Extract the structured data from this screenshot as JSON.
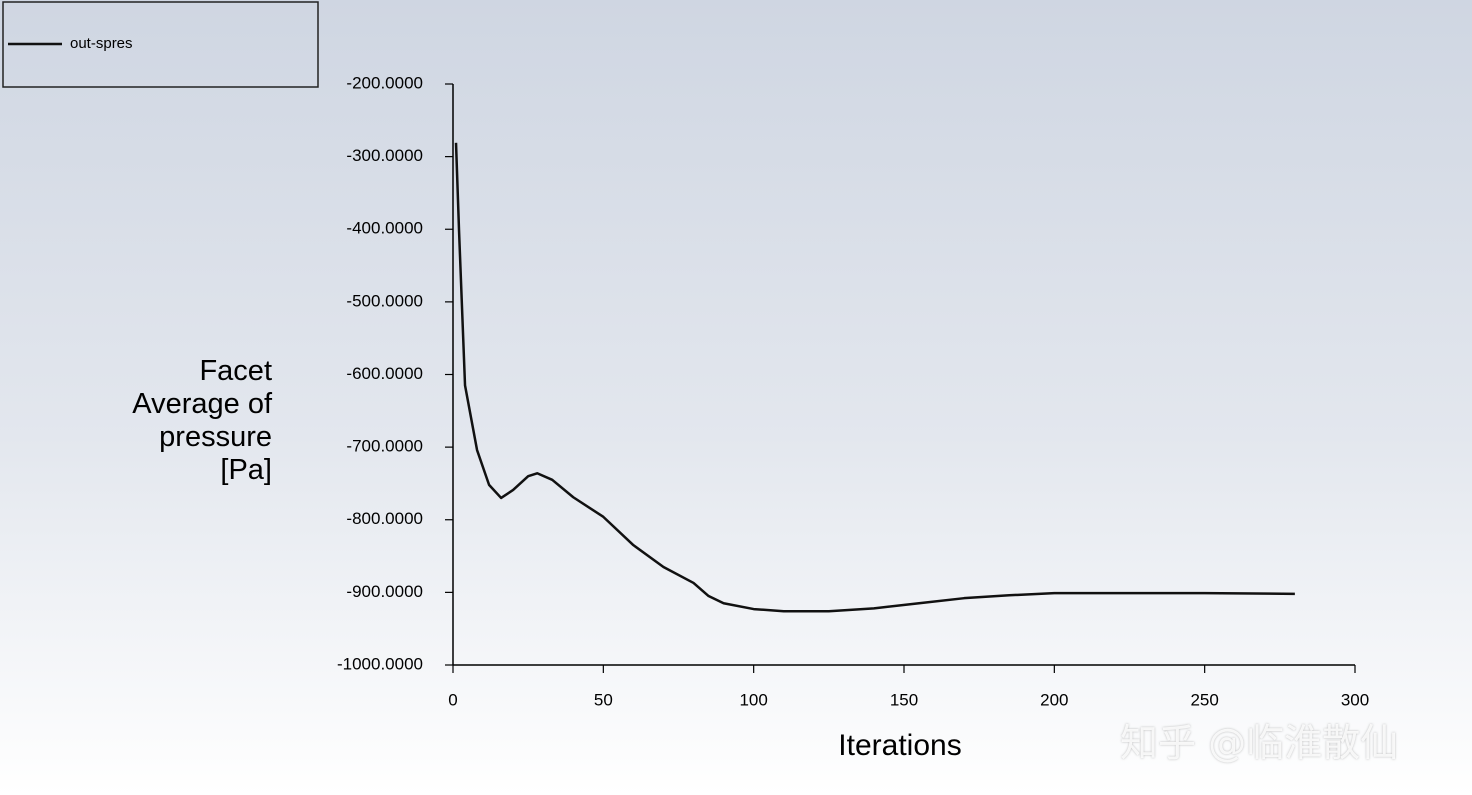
{
  "chart_data": {
    "type": "line",
    "xlabel": "Iterations",
    "ylabel": "Facet Average of pressure [Pa]",
    "watermark": "知乎 @临淮散仙",
    "x": [
      1,
      2,
      4,
      8,
      12,
      16,
      20,
      25,
      28,
      33,
      40,
      50,
      60,
      70,
      80,
      85,
      90,
      100,
      110,
      125,
      140,
      155,
      170,
      185,
      200,
      220,
      250,
      280
    ],
    "series": [
      {
        "name": "out-spres",
        "color": "#111111",
        "values": [
          -281,
          -401,
          -615,
          -704,
          -752,
          -770,
          -759,
          -740,
          -736,
          -745,
          -769,
          -796,
          -835,
          -865,
          -887,
          -905,
          -915,
          -923,
          -926,
          -926,
          -922,
          -915,
          -908,
          -904,
          -901,
          -901,
          -901,
          -902
        ]
      }
    ],
    "xlim": [
      0,
      300
    ],
    "xticks": [
      0,
      50,
      100,
      150,
      200,
      250,
      300
    ],
    "ylim": [
      -1000,
      -200
    ],
    "yticks": [
      {
        "value": -1000,
        "label": "-1000.0000"
      },
      {
        "value": -900,
        "label": "-900.0000"
      },
      {
        "value": -800,
        "label": "-800.0000"
      },
      {
        "value": -700,
        "label": "-700.0000"
      },
      {
        "value": -600,
        "label": "-600.0000"
      },
      {
        "value": -500,
        "label": "-500.0000"
      },
      {
        "value": -400,
        "label": "-400.0000"
      },
      {
        "value": -300,
        "label": "-300.0000"
      },
      {
        "value": -200,
        "label": "-200.0000"
      }
    ],
    "grid": false
  }
}
